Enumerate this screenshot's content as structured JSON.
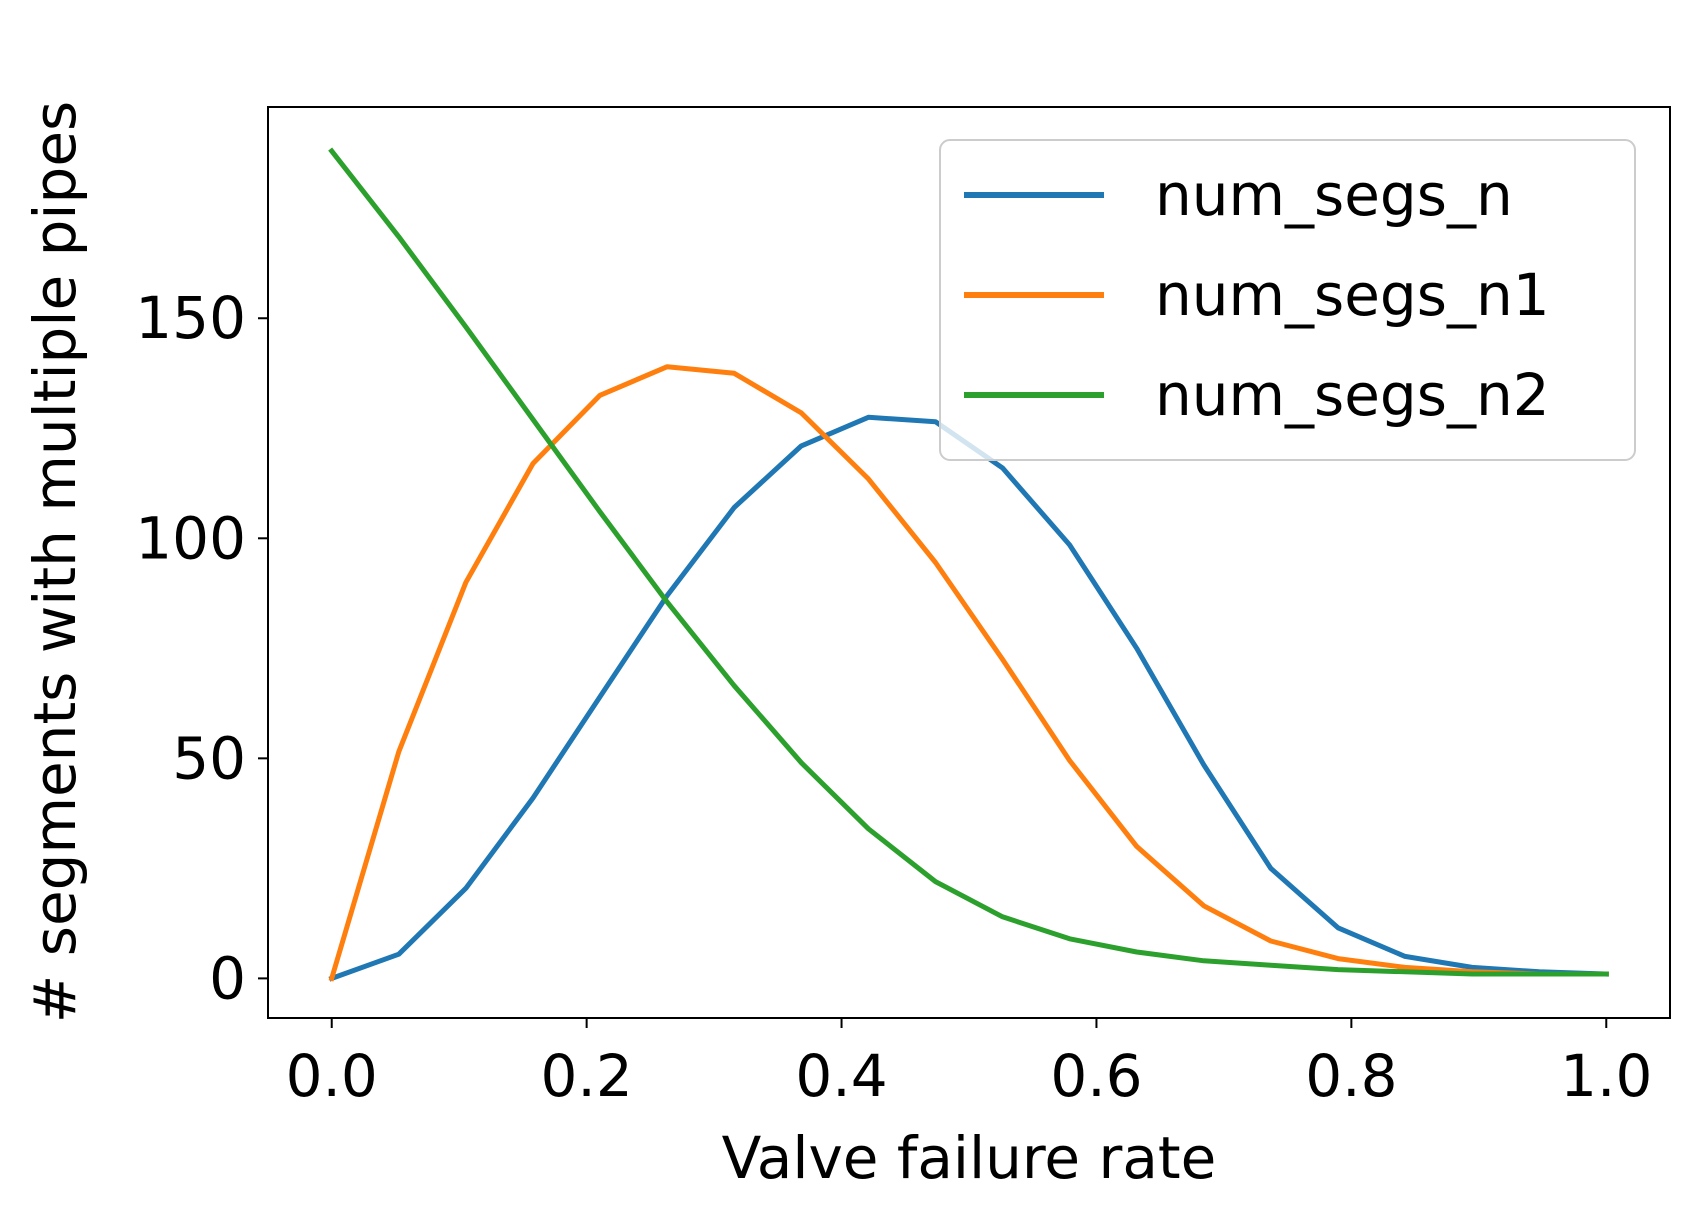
{
  "chart_data": {
    "type": "line",
    "title": "",
    "xlabel": "Valve failure rate",
    "ylabel": "# segments with multiple pipes",
    "xlim": [
      -0.05,
      1.05
    ],
    "ylim": [
      -9,
      198
    ],
    "xticks": [
      0.0,
      0.2,
      0.4,
      0.6,
      0.8,
      1.0
    ],
    "xtick_labels": [
      "0.0",
      "0.2",
      "0.4",
      "0.6",
      "0.8",
      "1.0"
    ],
    "yticks": [
      0,
      50,
      100,
      150
    ],
    "ytick_labels": [
      "0",
      "50",
      "100",
      "150"
    ],
    "grid": false,
    "legend_position": "upper-right",
    "x": [
      0.0,
      0.0526,
      0.1053,
      0.1579,
      0.2105,
      0.2632,
      0.3158,
      0.3684,
      0.4211,
      0.4737,
      0.5263,
      0.5789,
      0.6316,
      0.6842,
      0.7368,
      0.7895,
      0.8421,
      0.8947,
      0.9474,
      1.0
    ],
    "series": [
      {
        "name": "num_segs_n",
        "color": "#1f77b4",
        "values": [
          0,
          5.5,
          20.5,
          41,
          64,
          87,
          107,
          121,
          127.5,
          126.5,
          116,
          98.5,
          75,
          48.5,
          25,
          11.5,
          5,
          2.5,
          1.5,
          1
        ]
      },
      {
        "name": "num_segs_n1",
        "color": "#ff7f0e",
        "values": [
          0,
          51.5,
          90,
          117,
          132.5,
          139,
          137.5,
          128.5,
          113.5,
          94.5,
          72.5,
          49.5,
          30,
          16.5,
          8.5,
          4.5,
          2.5,
          1.5,
          1,
          1
        ]
      },
      {
        "name": "num_segs_n2",
        "color": "#2ca02c",
        "values": [
          188,
          168.5,
          148,
          127,
          106,
          85.5,
          66.5,
          49,
          34,
          22,
          14,
          9,
          6,
          4,
          3,
          2,
          1.5,
          1,
          1,
          1
        ]
      }
    ]
  }
}
